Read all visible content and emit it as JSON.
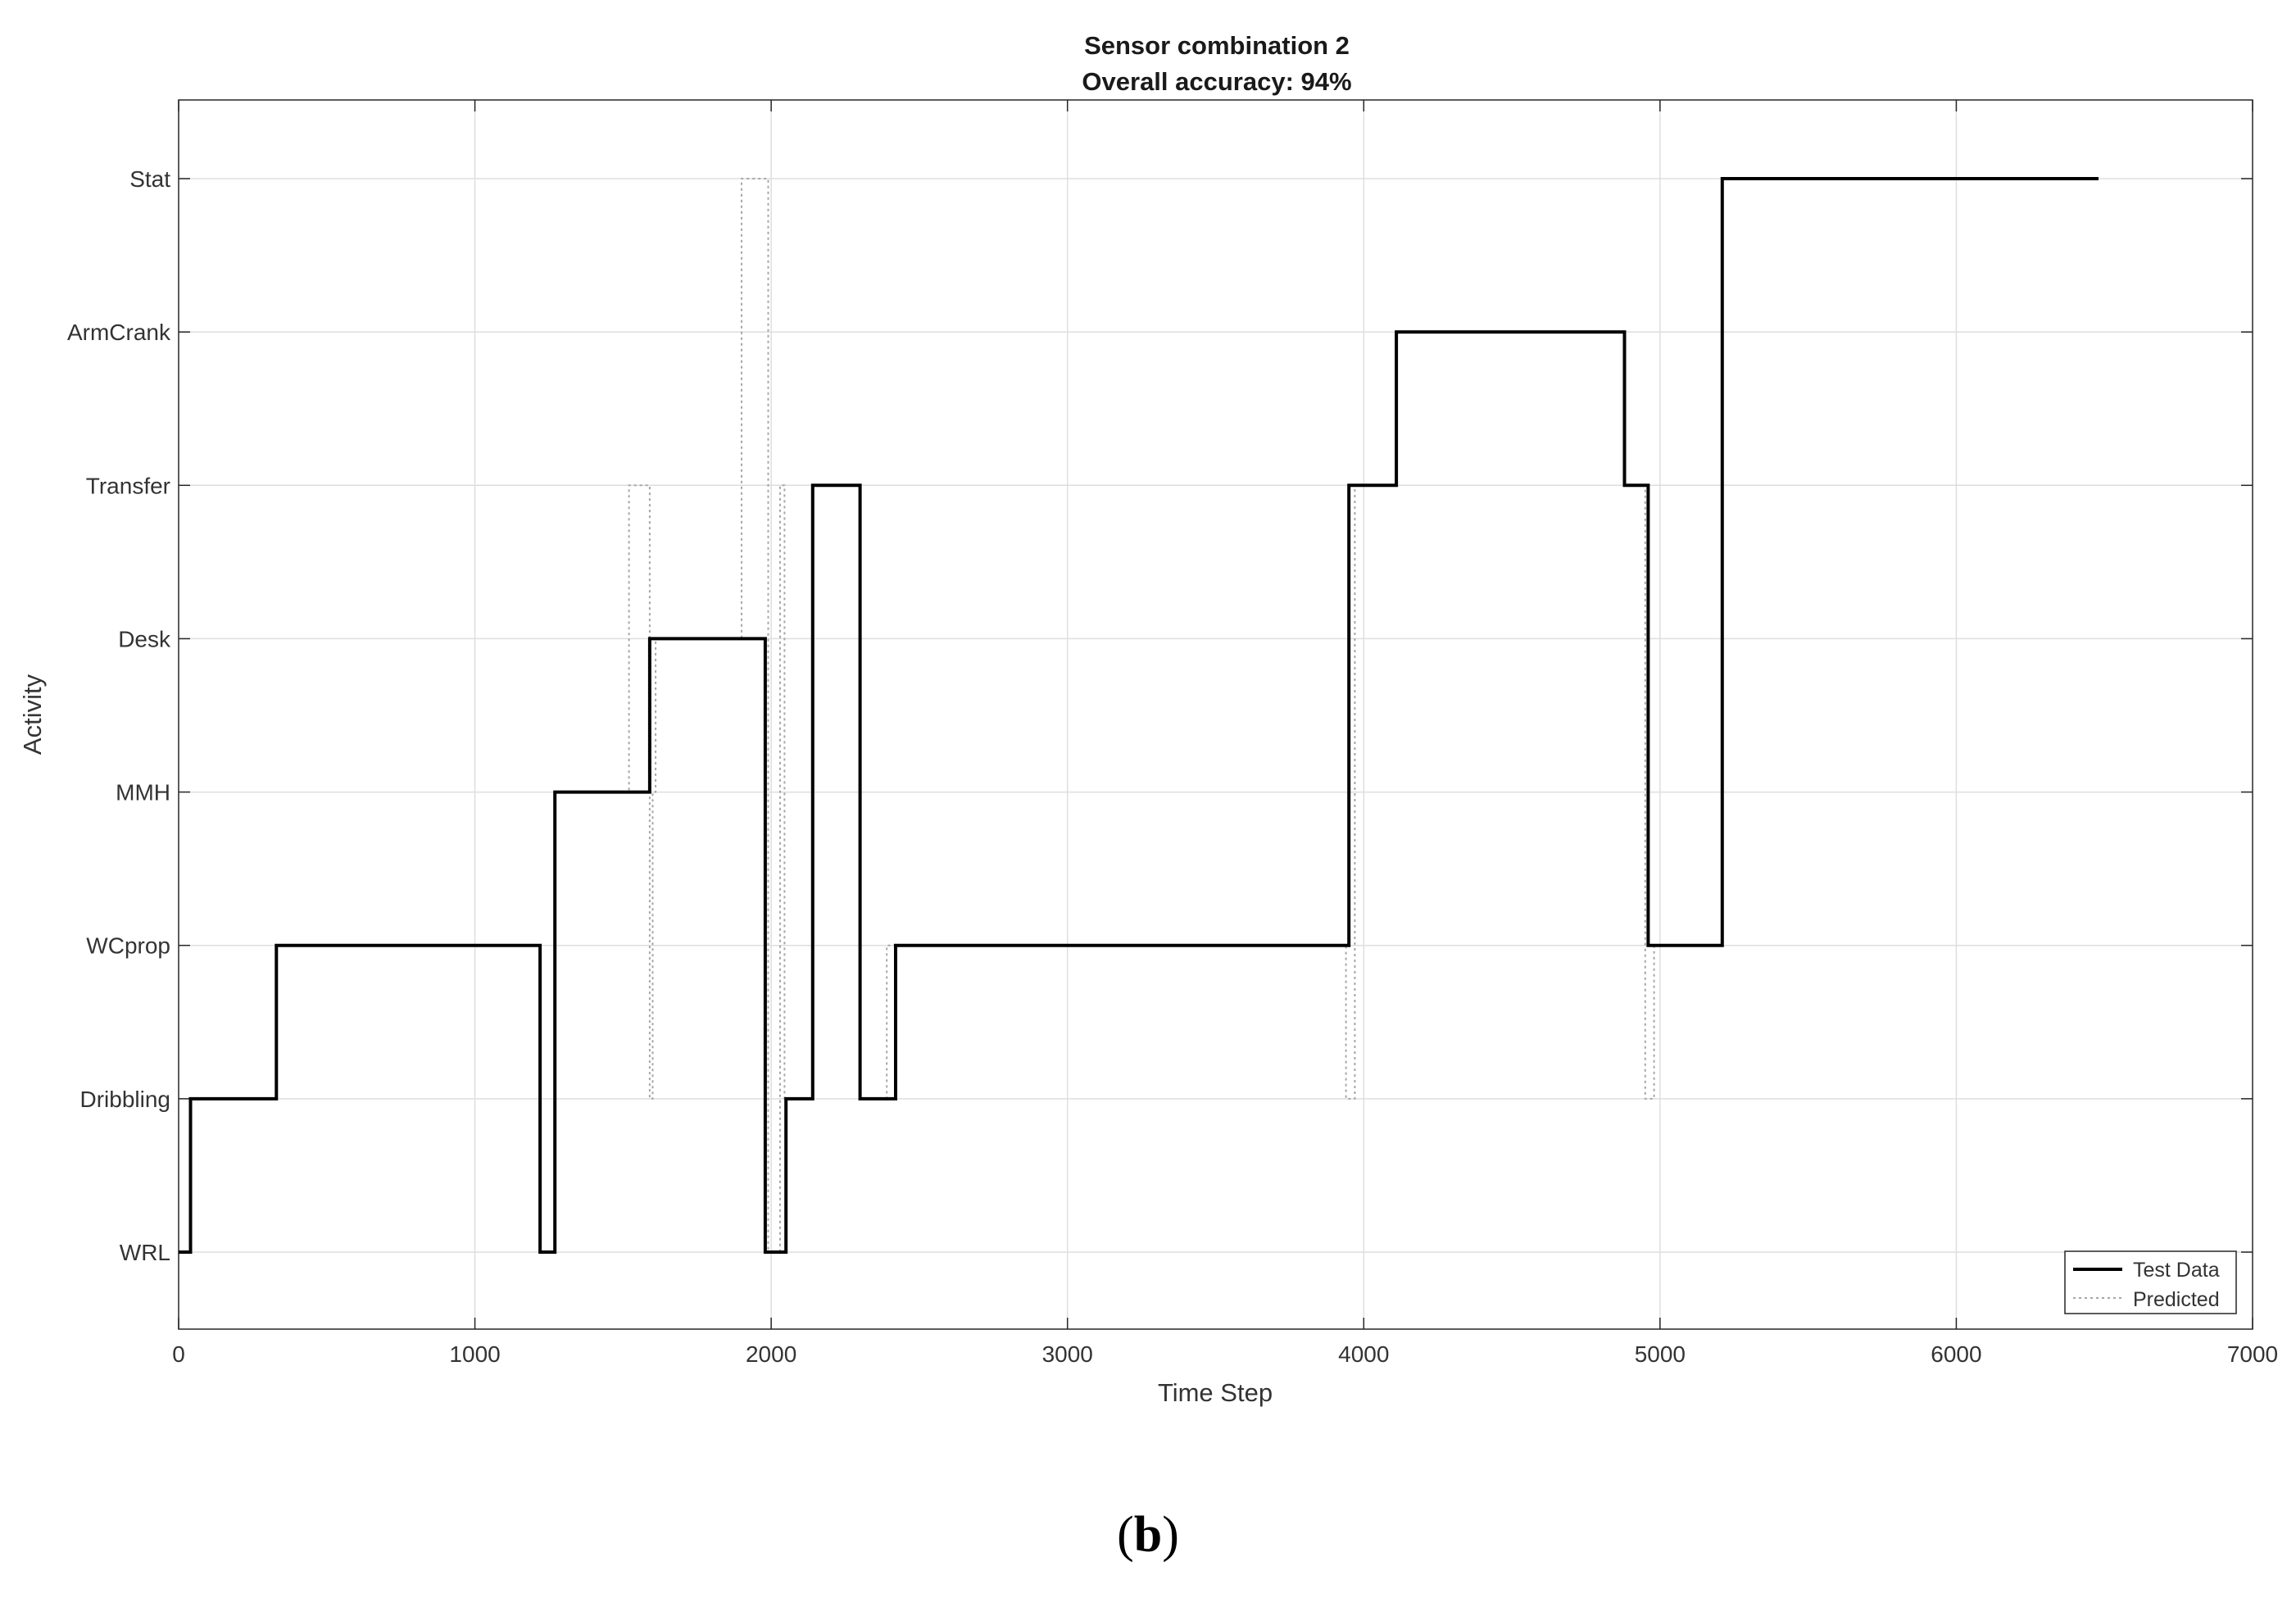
{
  "chart_data": {
    "type": "line",
    "title": "Sensor combination 2",
    "subtitle": "Overall accuracy: 94%",
    "xlabel": "Time Step",
    "ylabel": "Activity",
    "xlim": [
      0,
      7000
    ],
    "x_ticks": [
      0,
      1000,
      2000,
      3000,
      4000,
      5000,
      6000,
      7000
    ],
    "categories": [
      "WRL",
      "Dribbling",
      "WCprop",
      "MMH",
      "Desk",
      "Transfer",
      "ArmCrank",
      "Stat"
    ],
    "grid": true,
    "legend_position": "bottom-right",
    "series": [
      {
        "name": "Test Data",
        "color": "#000000",
        "style": "solid",
        "step_points": [
          [
            0,
            "WRL"
          ],
          [
            40,
            "WRL"
          ],
          [
            40,
            "Dribbling"
          ],
          [
            330,
            "Dribbling"
          ],
          [
            330,
            "WCprop"
          ],
          [
            1220,
            "WCprop"
          ],
          [
            1220,
            "WRL"
          ],
          [
            1270,
            "WRL"
          ],
          [
            1270,
            "MMH"
          ],
          [
            1590,
            "MMH"
          ],
          [
            1590,
            "Desk"
          ],
          [
            1980,
            "Desk"
          ],
          [
            1980,
            "WRL"
          ],
          [
            2050,
            "WRL"
          ],
          [
            2050,
            "Dribbling"
          ],
          [
            2140,
            "Dribbling"
          ],
          [
            2140,
            "Transfer"
          ],
          [
            2300,
            "Transfer"
          ],
          [
            2300,
            "Dribbling"
          ],
          [
            2420,
            "Dribbling"
          ],
          [
            2420,
            "WCprop"
          ],
          [
            3950,
            "WCprop"
          ],
          [
            3950,
            "Transfer"
          ],
          [
            4110,
            "Transfer"
          ],
          [
            4110,
            "ArmCrank"
          ],
          [
            4880,
            "ArmCrank"
          ],
          [
            4880,
            "Transfer"
          ],
          [
            4960,
            "Transfer"
          ],
          [
            4960,
            "WCprop"
          ],
          [
            5210,
            "WCprop"
          ],
          [
            5210,
            "Stat"
          ],
          [
            6480,
            "Stat"
          ]
        ]
      },
      {
        "name": "Predicted",
        "color": "#a6a6a6",
        "style": "dotted",
        "step_points": [
          [
            0,
            "WRL"
          ],
          [
            40,
            "WRL"
          ],
          [
            40,
            "Dribbling"
          ],
          [
            330,
            "Dribbling"
          ],
          [
            330,
            "WCprop"
          ],
          [
            1220,
            "WCprop"
          ],
          [
            1220,
            "WRL"
          ],
          [
            1270,
            "WRL"
          ],
          [
            1270,
            "MMH"
          ],
          [
            1520,
            "MMH"
          ],
          [
            1520,
            "Transfer"
          ],
          [
            1590,
            "Transfer"
          ],
          [
            1590,
            "Dribbling"
          ],
          [
            1600,
            "Dribbling"
          ],
          [
            1600,
            "MMH"
          ],
          [
            1610,
            "MMH"
          ],
          [
            1610,
            "Desk"
          ],
          [
            1900,
            "Desk"
          ],
          [
            1900,
            "Stat"
          ],
          [
            1990,
            "Stat"
          ],
          [
            1990,
            "WRL"
          ],
          [
            2030,
            "WRL"
          ],
          [
            2030,
            "Transfer"
          ],
          [
            2045,
            "Transfer"
          ],
          [
            2045,
            "Dribbling"
          ],
          [
            2140,
            "Dribbling"
          ],
          [
            2140,
            "Transfer"
          ],
          [
            2300,
            "Transfer"
          ],
          [
            2300,
            "Dribbling"
          ],
          [
            2390,
            "Dribbling"
          ],
          [
            2390,
            "WCprop"
          ],
          [
            3940,
            "WCprop"
          ],
          [
            3940,
            "Dribbling"
          ],
          [
            3970,
            "Dribbling"
          ],
          [
            3970,
            "Transfer"
          ],
          [
            4110,
            "Transfer"
          ],
          [
            4110,
            "ArmCrank"
          ],
          [
            4880,
            "ArmCrank"
          ],
          [
            4880,
            "Transfer"
          ],
          [
            4950,
            "Transfer"
          ],
          [
            4950,
            "Dribbling"
          ],
          [
            4980,
            "Dribbling"
          ],
          [
            4980,
            "WCprop"
          ],
          [
            5210,
            "WCprop"
          ],
          [
            5210,
            "Stat"
          ],
          [
            6480,
            "Stat"
          ]
        ]
      }
    ]
  },
  "caption": {
    "open": "(",
    "label": "b",
    "close": ")"
  }
}
